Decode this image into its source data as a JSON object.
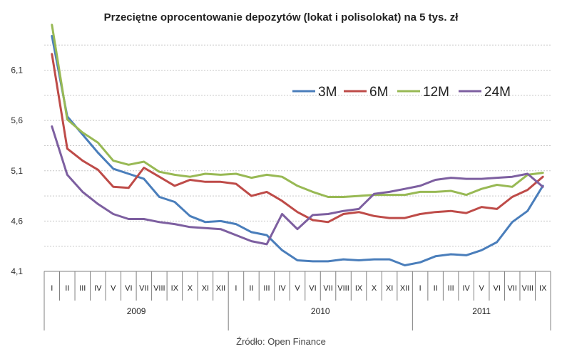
{
  "chart_data": {
    "type": "line",
    "title": "Przeciętne oprocentowanie depozytów (lokat i polisolokat) na 5 tys. zł",
    "source": "Źródło: Open Finance",
    "xlabel": "",
    "ylabel": "",
    "ylim": [
      4.1,
      6.5
    ],
    "yticks": [
      "4,1",
      "4,6",
      "5,1",
      "5,6",
      "6,1"
    ],
    "ytick_values": [
      4.1,
      4.6,
      5.1,
      5.6,
      6.1
    ],
    "grid": "horizontal",
    "legend_position": "top-right",
    "categories": [
      "I",
      "II",
      "III",
      "IV",
      "V",
      "VI",
      "VII",
      "VIII",
      "IX",
      "X",
      "XI",
      "XII",
      "I",
      "II",
      "III",
      "IV",
      "V",
      "VI",
      "VII",
      "VIII",
      "IX",
      "X",
      "XI",
      "XII",
      "I",
      "II",
      "III",
      "IV",
      "V",
      "VI",
      "VII",
      "VIII",
      "IX"
    ],
    "years": [
      {
        "label": "2009",
        "start": 0,
        "count": 12
      },
      {
        "label": "2010",
        "start": 12,
        "count": 12
      },
      {
        "label": "2011",
        "start": 24,
        "count": 9
      }
    ],
    "series": [
      {
        "name": "3M",
        "color": "#4a7ebb",
        "values": [
          6.44,
          5.64,
          5.46,
          5.28,
          5.12,
          5.07,
          5.02,
          4.84,
          4.79,
          4.65,
          4.59,
          4.6,
          4.57,
          4.49,
          4.46,
          4.31,
          4.21,
          4.2,
          4.2,
          4.22,
          4.21,
          4.22,
          4.22,
          4.16,
          4.19,
          4.25,
          4.27,
          4.26,
          4.31,
          4.39,
          4.59,
          4.7,
          4.95
        ]
      },
      {
        "name": "6M",
        "color": "#be4b48",
        "values": [
          6.26,
          5.32,
          5.2,
          5.11,
          4.94,
          4.93,
          5.13,
          5.04,
          4.95,
          5.01,
          4.99,
          4.99,
          4.97,
          4.85,
          4.89,
          4.8,
          4.69,
          4.61,
          4.59,
          4.67,
          4.69,
          4.65,
          4.63,
          4.63,
          4.67,
          4.69,
          4.7,
          4.68,
          4.74,
          4.72,
          4.84,
          4.91,
          5.04
        ]
      },
      {
        "name": "12M",
        "color": "#98b954",
        "values": [
          6.55,
          5.61,
          5.48,
          5.38,
          5.2,
          5.16,
          5.19,
          5.09,
          5.06,
          5.04,
          5.07,
          5.06,
          5.07,
          5.03,
          5.06,
          5.04,
          4.95,
          4.89,
          4.84,
          4.84,
          4.85,
          4.86,
          4.86,
          4.86,
          4.89,
          4.89,
          4.9,
          4.86,
          4.92,
          4.96,
          4.94,
          5.06,
          5.08
        ]
      },
      {
        "name": "24M",
        "color": "#7d5fa0",
        "values": [
          5.54,
          5.06,
          4.89,
          4.77,
          4.67,
          4.62,
          4.62,
          4.59,
          4.57,
          4.54,
          4.53,
          4.52,
          4.46,
          4.4,
          4.37,
          4.67,
          4.52,
          4.66,
          4.67,
          4.7,
          4.72,
          4.87,
          4.89,
          4.92,
          4.95,
          5.01,
          5.03,
          5.02,
          5.02,
          5.03,
          5.04,
          5.07,
          4.94
        ]
      }
    ]
  }
}
